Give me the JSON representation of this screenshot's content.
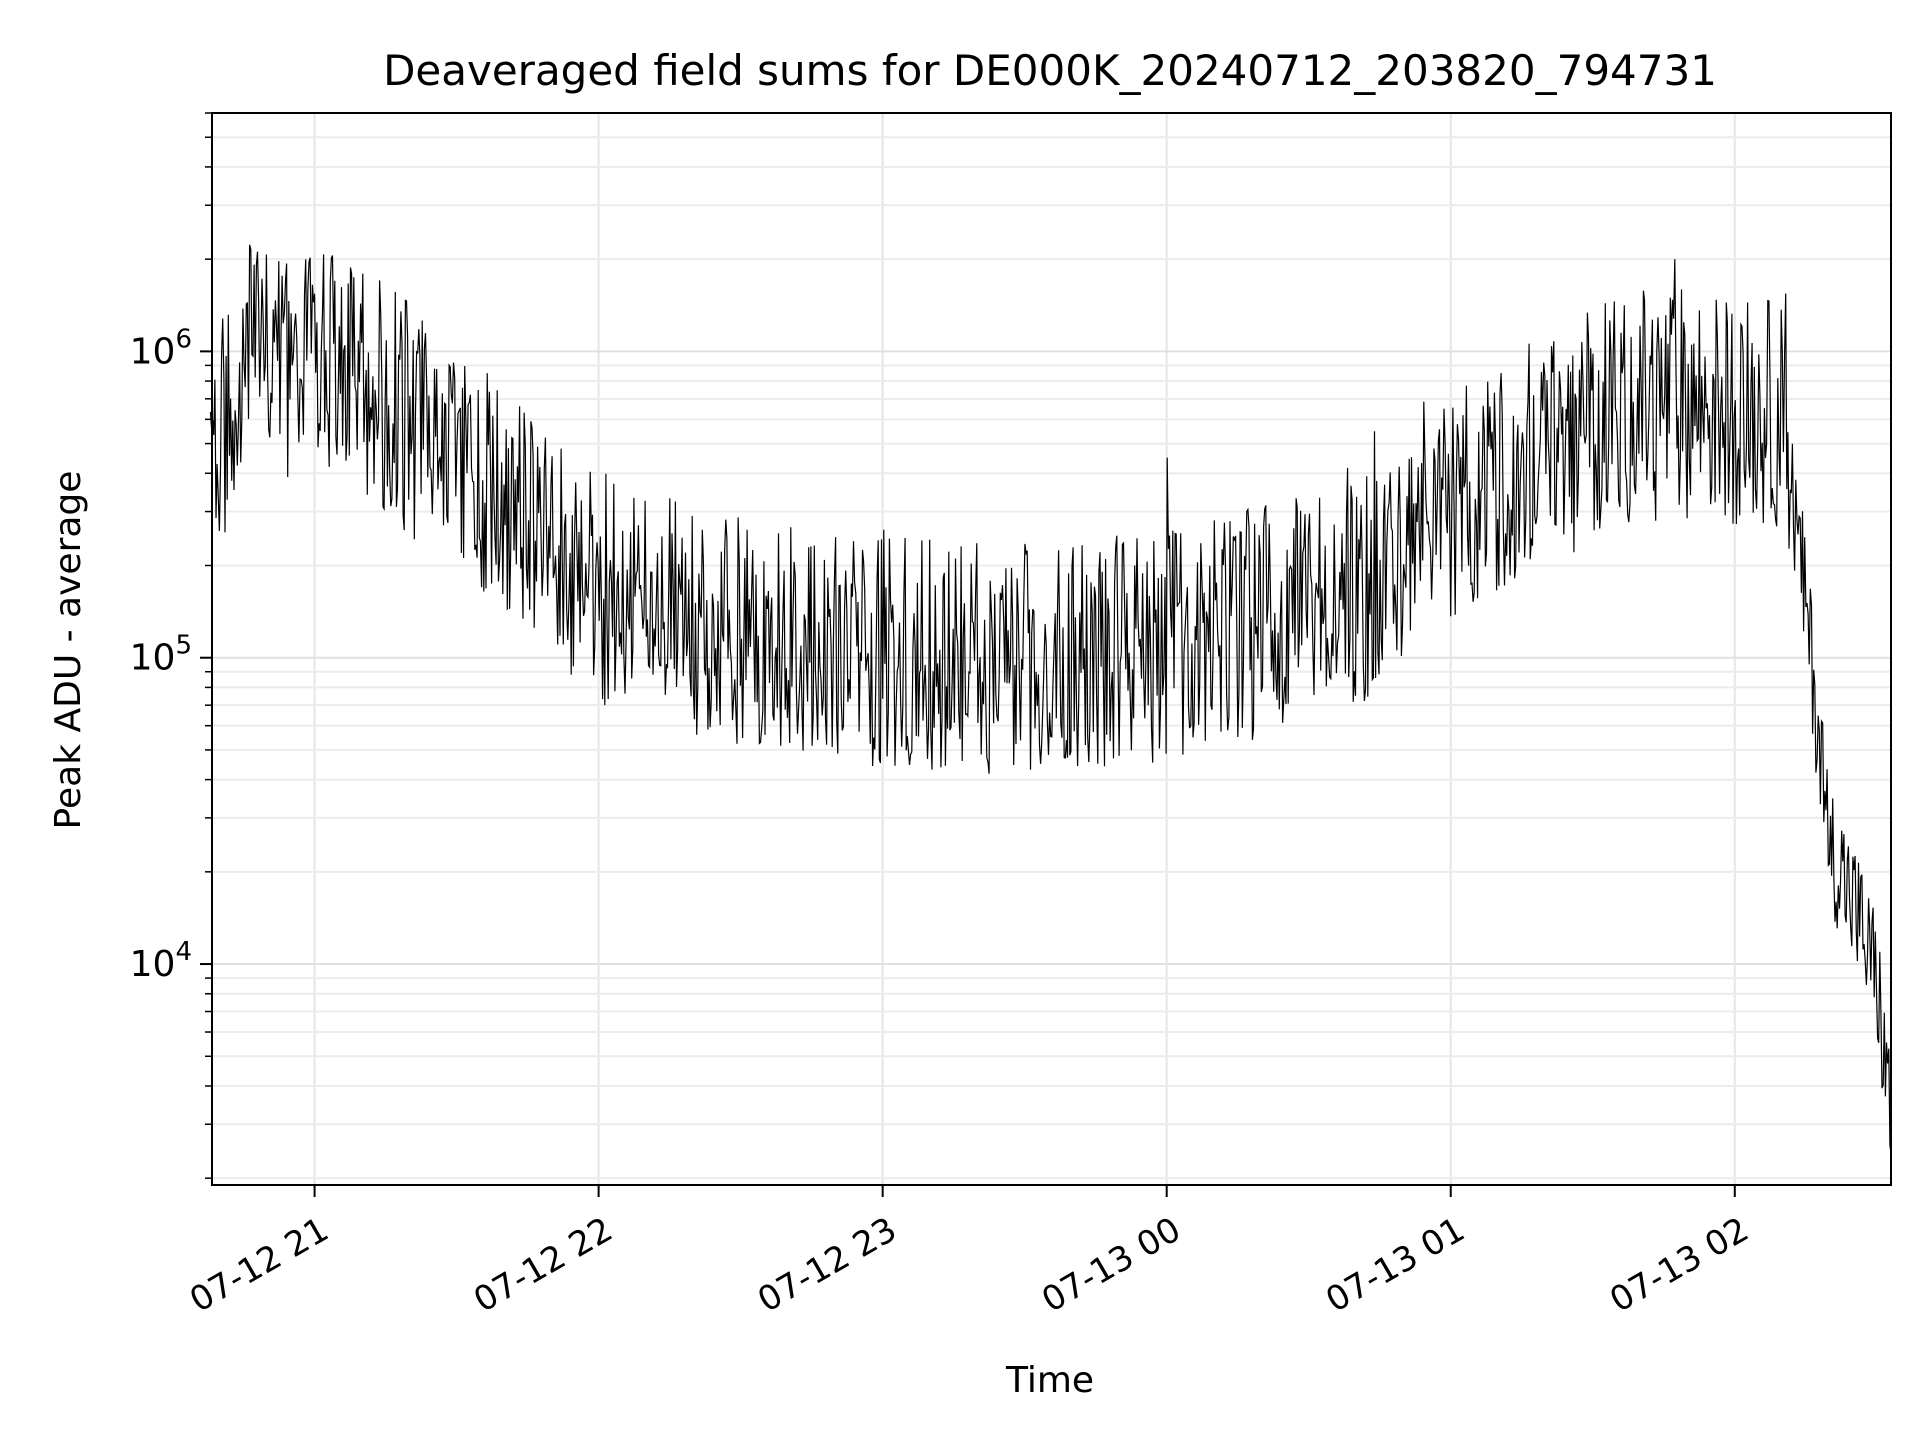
{
  "chart_data": {
    "type": "line",
    "title": "Deaveraged field sums for DE000K_20240712_203820_794731",
    "xlabel": "Time",
    "ylabel": "Peak ADU - average",
    "x_is_time": true,
    "xlim": [
      "2024-07-12 20:38:20",
      "2024-07-13 02:33:00"
    ],
    "ylim": [
      1900,
      6000000
    ],
    "yscale": "log",
    "grid": true,
    "grid_minor": true,
    "line_color": "#000000",
    "x_ticks": [
      {
        "value": "2024-07-12 21:00",
        "label": "07-12 21"
      },
      {
        "value": "2024-07-12 22:00",
        "label": "07-12 22"
      },
      {
        "value": "2024-07-12 23:00",
        "label": "07-12 23"
      },
      {
        "value": "2024-07-13 00:00",
        "label": "07-13 00"
      },
      {
        "value": "2024-07-13 01:00",
        "label": "07-13 01"
      },
      {
        "value": "2024-07-13 02:00",
        "label": "07-13 02"
      }
    ],
    "y_ticks": [
      {
        "value": 10000,
        "base": "10",
        "exp": "4"
      },
      {
        "value": 100000,
        "base": "10",
        "exp": "5"
      },
      {
        "value": 1000000,
        "base": "10",
        "exp": "6"
      }
    ],
    "series": [
      {
        "x": [
          "2024-07-12 20:38",
          "2024-07-12 20:45",
          "2024-07-12 20:52",
          "2024-07-12 21:00",
          "2024-07-12 21:10",
          "2024-07-12 21:20",
          "2024-07-12 21:30",
          "2024-07-12 21:40",
          "2024-07-12 21:50",
          "2024-07-12 22:00",
          "2024-07-12 22:15",
          "2024-07-12 22:30",
          "2024-07-12 22:45",
          "2024-07-12 23:00",
          "2024-07-12 23:15",
          "2024-07-12 23:30",
          "2024-07-12 23:45",
          "2024-07-13 00:00",
          "2024-07-13 00:15",
          "2024-07-13 00:30",
          "2024-07-13 00:45",
          "2024-07-13 01:00",
          "2024-07-13 01:15",
          "2024-07-13 01:30",
          "2024-07-13 01:45",
          "2024-07-13 02:00",
          "2024-07-13 02:10",
          "2024-07-13 02:15",
          "2024-07-13 02:20",
          "2024-07-13 02:25",
          "2024-07-13 02:30",
          "2024-07-13 02:33"
        ],
        "y": [
          400000,
          1000000,
          900000,
          900000,
          800000,
          600000,
          450000,
          320000,
          230000,
          170000,
          140000,
          120000,
          110000,
          105000,
          100000,
          100000,
          105000,
          110000,
          125000,
          145000,
          170000,
          300000,
          450000,
          620000,
          700000,
          650000,
          620000,
          150000,
          25000,
          16000,
          9000,
          3000
        ]
      }
    ]
  }
}
